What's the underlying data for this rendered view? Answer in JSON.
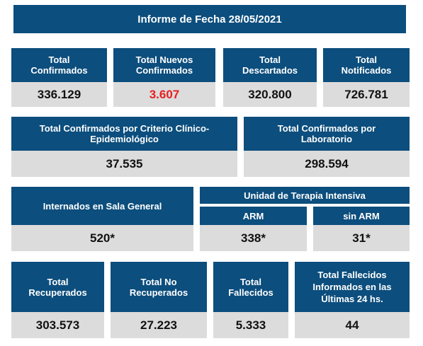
{
  "title": "Informe de Fecha 28/05/2021",
  "row1": [
    {
      "label": "Total\nConfirmados",
      "value": "336.129"
    },
    {
      "label": "Total Nuevos\nConfirmados",
      "value": "3.607",
      "highlight": "#e62020"
    },
    {
      "label": "Total\nDescartados",
      "value": "320.800"
    },
    {
      "label": "Total\nNotificados",
      "value": "726.781"
    }
  ],
  "row2": [
    {
      "label": "Total Confirmados por Criterio Clínico-\nEpidemiológico",
      "value": "37.535"
    },
    {
      "label": "Total Confirmados por\nLaboratorio",
      "value": "298.594"
    }
  ],
  "row3": {
    "sala_general": {
      "label": "Internados en Sala General",
      "value": "520*"
    },
    "uti": {
      "label": "Unidad de Terapia Intensiva",
      "arm": {
        "label": "ARM",
        "value": "338*"
      },
      "sin_arm": {
        "label": "sin ARM",
        "value": "31*"
      }
    }
  },
  "row4": [
    {
      "label": "Total\nRecuperados",
      "value": "303.573"
    },
    {
      "label": "Total No\nRecuperados",
      "value": "27.223"
    },
    {
      "label": "Total\nFallecidos",
      "value": "5.333"
    },
    {
      "label": "Total Fallecidos\nInformados en las\nÚltimas 24 hs.",
      "value": "44"
    }
  ],
  "colors": {
    "header_bg": "#0c4e7d",
    "value_bg": "#dcdcdc",
    "highlight": "#e62020"
  }
}
